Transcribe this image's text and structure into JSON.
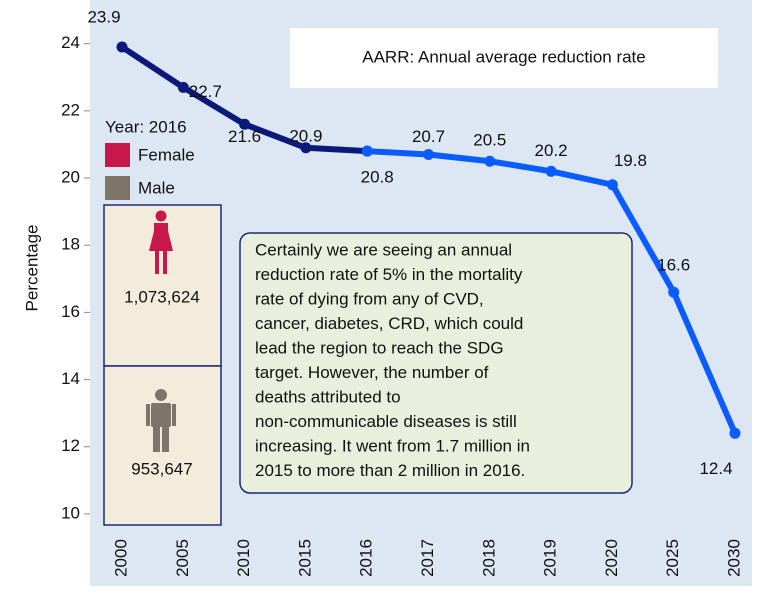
{
  "chart_data": {
    "type": "line",
    "y_label": "Percentage",
    "categories": [
      "2000",
      "2005",
      "2010",
      "2015",
      "2016",
      "2017",
      "2018",
      "2019",
      "2020",
      "2025",
      "2030"
    ],
    "series": [
      {
        "color": "#0b1a7a",
        "values": [
          23.9,
          22.7,
          21.6,
          20.9,
          20.8,
          null,
          null,
          null,
          null,
          null,
          null
        ]
      },
      {
        "color": "#0a5cff",
        "values": [
          null,
          null,
          null,
          null,
          20.8,
          20.7,
          20.5,
          20.2,
          19.8,
          16.6,
          12.4
        ]
      }
    ],
    "ylim": [
      9.7,
      25.3
    ],
    "yticks": [
      10,
      12,
      14,
      16,
      18,
      20,
      22,
      24
    ],
    "aarr_note": "AARR: Annual average reduction rate",
    "legend": {
      "title": "Year: 2016",
      "items": [
        {
          "name": "Female",
          "color": "#c8174a",
          "count": "1,073,624"
        },
        {
          "name": "Male",
          "color": "#7f7469",
          "count": "953,647"
        }
      ]
    },
    "annotation_lines": [
      "Certainly we are seeing an annual",
      "reduction rate of 5% in the mortality",
      "rate  of dying from any of CVD,",
      "cancer, diabetes, CRD, which could",
      "lead the region to reach the SDG",
      "target. However, the number of",
      "deaths attributed to",
      "non-communicable diseases is still",
      "increasing. It went from 1.7 million in",
      "2015 to more than 2 million in 2016."
    ]
  }
}
